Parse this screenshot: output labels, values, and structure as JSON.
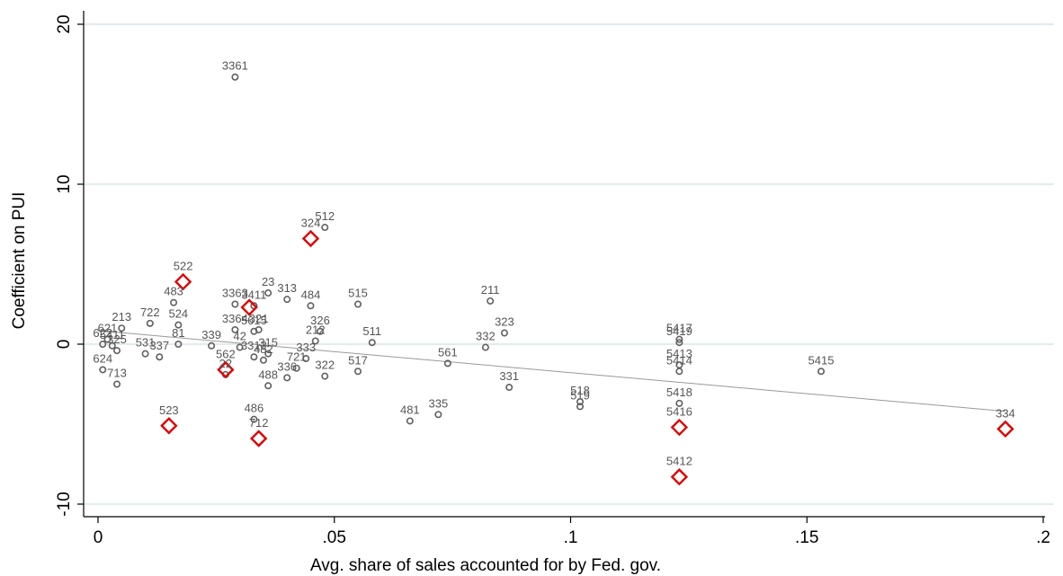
{
  "chart_data": {
    "type": "scatter",
    "title": "",
    "xlabel": "Avg. share of sales accounted for by Fed. gov.",
    "ylabel": "Coefficient on PUI",
    "xlim": [
      -0.004,
      0.205
    ],
    "ylim": [
      -11,
      21
    ],
    "xticks": [
      0,
      0.05,
      0.1,
      0.15,
      0.2
    ],
    "xtick_labels": [
      "0",
      ".05",
      ".1",
      ".15",
      ".2"
    ],
    "yticks": [
      -10,
      0,
      10,
      20
    ],
    "ytick_labels": [
      "-10",
      "0",
      "10",
      "20"
    ],
    "grid": "horizontal",
    "colors": {
      "circle": "#606060",
      "highlight": "#e00000",
      "fitline": "#999999",
      "grid": "#d8e6ea"
    },
    "fit_line": {
      "x": [
        0,
        0.192
      ],
      "y": [
        0.85,
        -4.2
      ]
    },
    "points": [
      {
        "x": 0.029,
        "y": 16.7,
        "label": "3361"
      },
      {
        "x": 0.048,
        "y": 7.3,
        "label": "512"
      },
      {
        "x": 0.016,
        "y": 2.6,
        "label": "483"
      },
      {
        "x": 0.036,
        "y": 3.2,
        "label": "23"
      },
      {
        "x": 0.04,
        "y": 2.8,
        "label": "313"
      },
      {
        "x": 0.029,
        "y": 2.5,
        "label": "3363"
      },
      {
        "x": 0.033,
        "y": 2.4,
        "label": "3411"
      },
      {
        "x": 0.045,
        "y": 2.4,
        "label": "484"
      },
      {
        "x": 0.055,
        "y": 2.5,
        "label": "515"
      },
      {
        "x": 0.083,
        "y": 2.7,
        "label": "211"
      },
      {
        "x": 0.034,
        "y": 0.9,
        "label": "321"
      },
      {
        "x": 0.005,
        "y": 1.0,
        "label": "213"
      },
      {
        "x": 0.011,
        "y": 1.3,
        "label": "722"
      },
      {
        "x": 0.017,
        "y": 1.2,
        "label": "524"
      },
      {
        "x": 0.029,
        "y": 0.9,
        "label": "3364"
      },
      {
        "x": 0.033,
        "y": 0.8,
        "label": "5615"
      },
      {
        "x": 0.047,
        "y": 0.8,
        "label": "326"
      },
      {
        "x": 0.046,
        "y": 0.2,
        "label": "212"
      },
      {
        "x": 0.058,
        "y": 0.1,
        "label": "511"
      },
      {
        "x": 0.086,
        "y": 0.7,
        "label": "323"
      },
      {
        "x": 0.082,
        "y": -0.2,
        "label": "332"
      },
      {
        "x": 0.017,
        "y": 0.0,
        "label": "81"
      },
      {
        "x": 0.024,
        "y": -0.1,
        "label": "339"
      },
      {
        "x": 0.01,
        "y": -0.6,
        "label": "531"
      },
      {
        "x": 0.013,
        "y": -0.8,
        "label": "337"
      },
      {
        "x": 0.001,
        "y": 0.0,
        "label": "622"
      },
      {
        "x": 0.002,
        "y": 0.3,
        "label": "621"
      },
      {
        "x": 0.003,
        "y": -0.1,
        "label": "5411"
      },
      {
        "x": 0.004,
        "y": -0.4,
        "label": "325"
      },
      {
        "x": 0.001,
        "y": -1.6,
        "label": "624"
      },
      {
        "x": 0.004,
        "y": -2.5,
        "label": "713"
      },
      {
        "x": 0.027,
        "y": -1.9,
        "label": "22"
      },
      {
        "x": 0.03,
        "y": -0.2,
        "label": "42"
      },
      {
        "x": 0.033,
        "y": -0.8,
        "label": "3312"
      },
      {
        "x": 0.036,
        "y": -0.6,
        "label": "315"
      },
      {
        "x": 0.035,
        "y": -1.0,
        "label": "482"
      },
      {
        "x": 0.036,
        "y": -2.6,
        "label": "488"
      },
      {
        "x": 0.04,
        "y": -2.1,
        "label": "336"
      },
      {
        "x": 0.042,
        "y": -1.5,
        "label": "721"
      },
      {
        "x": 0.044,
        "y": -0.9,
        "label": "333"
      },
      {
        "x": 0.048,
        "y": -2.0,
        "label": "322"
      },
      {
        "x": 0.055,
        "y": -1.7,
        "label": "517"
      },
      {
        "x": 0.074,
        "y": -1.2,
        "label": "561"
      },
      {
        "x": 0.087,
        "y": -2.7,
        "label": "331"
      },
      {
        "x": 0.102,
        "y": -3.6,
        "label": "518"
      },
      {
        "x": 0.102,
        "y": -3.9,
        "label": "519"
      },
      {
        "x": 0.066,
        "y": -4.8,
        "label": "481"
      },
      {
        "x": 0.072,
        "y": -4.4,
        "label": "335"
      },
      {
        "x": 0.033,
        "y": -4.7,
        "label": "486"
      },
      {
        "x": 0.123,
        "y": 0.3,
        "label": "5417"
      },
      {
        "x": 0.123,
        "y": 0.1,
        "label": "5419"
      },
      {
        "x": 0.123,
        "y": -1.3,
        "label": "5413"
      },
      {
        "x": 0.123,
        "y": -1.7,
        "label": "5414"
      },
      {
        "x": 0.123,
        "y": -3.7,
        "label": "5418"
      },
      {
        "x": 0.153,
        "y": -1.7,
        "label": "5415"
      }
    ],
    "highlighted_points": [
      {
        "x": 0.045,
        "y": 6.6,
        "label": "324"
      },
      {
        "x": 0.018,
        "y": 3.9,
        "label": "522"
      },
      {
        "x": 0.032,
        "y": 2.3,
        "label": ""
      },
      {
        "x": 0.027,
        "y": -1.6,
        "label": "562"
      },
      {
        "x": 0.015,
        "y": -5.1,
        "label": "523"
      },
      {
        "x": 0.034,
        "y": -5.9,
        "label": "712"
      },
      {
        "x": 0.123,
        "y": -5.2,
        "label": "5416"
      },
      {
        "x": 0.123,
        "y": -8.3,
        "label": "5412"
      },
      {
        "x": 0.192,
        "y": -5.3,
        "label": "334"
      }
    ]
  }
}
